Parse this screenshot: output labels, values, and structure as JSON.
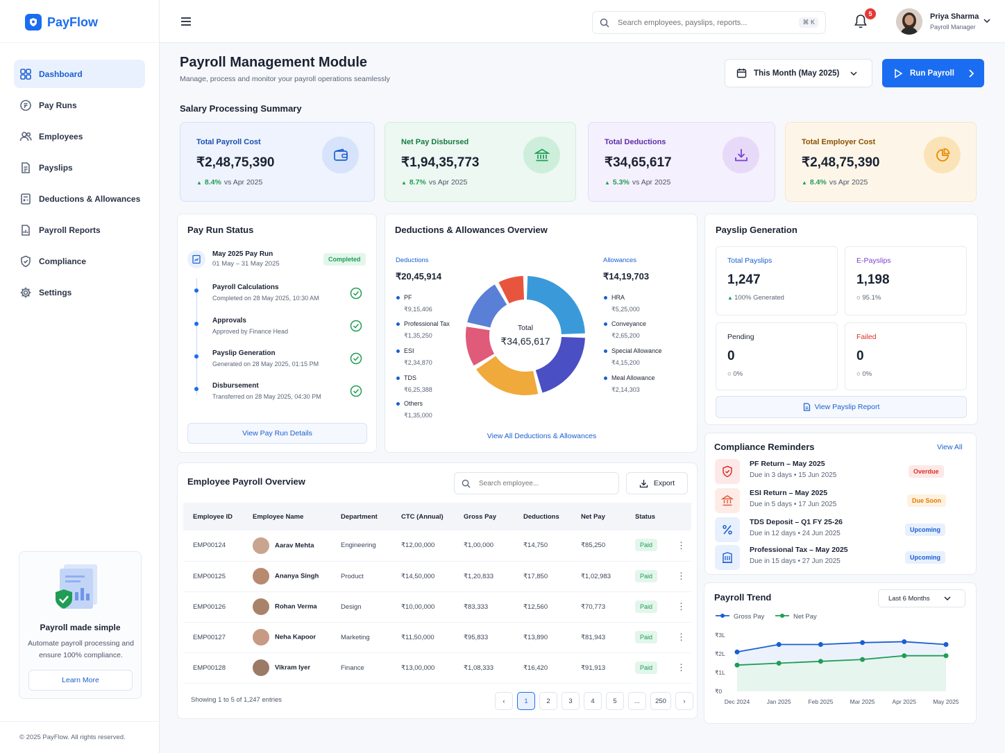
{
  "app": {
    "name": "PayFlow"
  },
  "sidebar": {
    "items": [
      {
        "label": "Dashboard",
        "icon": "grid-icon"
      },
      {
        "label": "Pay Runs",
        "icon": "coin-icon"
      },
      {
        "label": "Employees",
        "icon": "users-icon"
      },
      {
        "label": "Payslips",
        "icon": "document-icon"
      },
      {
        "label": "Deductions & Allowances",
        "icon": "calculator-icon"
      },
      {
        "label": "Payroll Reports",
        "icon": "report-icon"
      },
      {
        "label": "Compliance",
        "icon": "shield-icon"
      },
      {
        "label": "Settings",
        "icon": "gear-icon"
      }
    ],
    "promo": {
      "title": "Payroll made simple",
      "text": "Automate payroll processing and ensure 100% compliance.",
      "button": "Learn More"
    },
    "copyright": "© 2025 PayFlow. All rights reserved."
  },
  "topbar": {
    "search_placeholder": "Search employees, payslips, reports...",
    "shortcut": "⌘ K",
    "notifications": "5",
    "user": {
      "name": "Priya Sharma",
      "role": "Payroll Manager"
    }
  },
  "header": {
    "title": "Payroll Management Module",
    "subtitle": "Manage, process and monitor your payroll operations seamlessly",
    "period": "This Month (May 2025)",
    "run_button": "Run Payroll"
  },
  "summary": {
    "title": "Salary Processing Summary",
    "cards": [
      {
        "label": "Total Payroll Cost",
        "value": "₹2,48,75,390",
        "trend": "8.4%",
        "compare": "vs Apr 2025",
        "icon": "wallet-icon",
        "accent": "#1a5fd0"
      },
      {
        "label": "Net Pay Disbursed",
        "value": "₹1,94,35,773",
        "trend": "8.7%",
        "compare": "vs Apr 2025",
        "icon": "bank-icon",
        "accent": "#1f9d55"
      },
      {
        "label": "Total Deductions",
        "value": "₹34,65,617",
        "trend": "5.3%",
        "compare": "vs Apr 2025",
        "icon": "download-icon",
        "accent": "#7b3fd1"
      },
      {
        "label": "Total Employer Cost",
        "value": "₹2,48,75,390",
        "trend": "8.4%",
        "compare": "vs Apr 2025",
        "icon": "pie-icon",
        "accent": "#b86a00"
      }
    ]
  },
  "pay_run": {
    "title": "Pay Run Status",
    "name": "May 2025 Pay Run",
    "dates": "01 May – 31 May 2025",
    "status": "Completed",
    "steps": [
      {
        "title": "Payroll Calculations",
        "sub": "Completed on 28 May 2025, 10:30 AM"
      },
      {
        "title": "Approvals",
        "sub": "Approved by Finance Head"
      },
      {
        "title": "Payslip Generation",
        "sub": "Generated on 28 May 2025, 01:15 PM"
      },
      {
        "title": "Disbursement",
        "sub": "Transferred on 28 May 2025, 04:30 PM"
      }
    ],
    "button": "View Pay Run Details"
  },
  "deductions_overview": {
    "title": "Deductions & Allowances Overview",
    "deductions_label": "Deductions",
    "deductions_total": "₹20,45,914",
    "allowances_label": "Allowances",
    "allowances_total": "₹14,19,703",
    "deductions": [
      {
        "name": "PF",
        "value": "₹9,15,406"
      },
      {
        "name": "Professional Tax",
        "value": "₹1,35,250"
      },
      {
        "name": "ESI",
        "value": "₹2,34,870"
      },
      {
        "name": "TDS",
        "value": "₹6,25,388"
      },
      {
        "name": "Others",
        "value": "₹1,35,000"
      }
    ],
    "allowances": [
      {
        "name": "HRA",
        "value": "₹5,25,000"
      },
      {
        "name": "Conveyance",
        "value": "₹2,65,200"
      },
      {
        "name": "Special Allowance",
        "value": "₹4,15,200"
      },
      {
        "name": "Meal Allowance",
        "value": "₹2,14,303"
      }
    ],
    "donut_label": "Total",
    "donut_total": "₹34,65,617",
    "link": "View All Deductions & Allowances"
  },
  "donut_segments": [
    {
      "value": 25,
      "color": "#3a9ad9"
    },
    {
      "value": 21,
      "color": "#4a4fc4"
    },
    {
      "value": 20,
      "color": "#f0a93b"
    },
    {
      "value": 12,
      "color": "#e05a7a"
    },
    {
      "value": 14,
      "color": "#5a7fd6"
    },
    {
      "value": 8,
      "color": "#e8553e"
    }
  ],
  "payslips": {
    "title": "Payslip Generation",
    "boxes": [
      {
        "label": "Total Payslips",
        "value": "1,247",
        "sub": "100% Generated",
        "color": "#1a5fd0"
      },
      {
        "label": "E-Payslips",
        "value": "1,198",
        "sub": "95.1%",
        "color": "#7b3fd1"
      },
      {
        "label": "Pending",
        "value": "0",
        "sub": "0%",
        "color": "#1a2233"
      },
      {
        "label": "Failed",
        "value": "0",
        "sub": "0%",
        "color": "#d93025"
      }
    ],
    "button": "View Payslip Report"
  },
  "compliance": {
    "title": "Compliance Reminders",
    "view_all": "View All",
    "items": [
      {
        "title": "PF Return – May 2025",
        "due": "Due in 3 days",
        "date": "15 Jun 2025",
        "status": "Overdue",
        "icon": "shield-icon"
      },
      {
        "title": "ESI Return – May 2025",
        "due": "Due in 5 days",
        "date": "17 Jun 2025",
        "status": "Due Soon",
        "icon": "bank-icon"
      },
      {
        "title": "TDS Deposit – Q1 FY 25-26",
        "due": "Due in 12 days",
        "date": "24 Jun 2025",
        "status": "Upcoming",
        "icon": "percent-icon"
      },
      {
        "title": "Professional Tax – May 2025",
        "due": "Due in 15 days",
        "date": "27 Jun 2025",
        "status": "Upcoming",
        "icon": "building-icon"
      }
    ]
  },
  "employees": {
    "title": "Employee Payroll Overview",
    "search_placeholder": "Search employee...",
    "export": "Export",
    "columns": [
      "Employee ID",
      "Employee Name",
      "Department",
      "CTC (Annual)",
      "Gross Pay",
      "Deductions",
      "Net Pay",
      "Status"
    ],
    "rows": [
      [
        "EMP00124",
        "Aarav Mehta",
        "Engineering",
        "₹12,00,000",
        "₹1,00,000",
        "₹14,750",
        "₹85,250",
        "Paid"
      ],
      [
        "EMP00125",
        "Ananya Singh",
        "Product",
        "₹14,50,000",
        "₹1,20,833",
        "₹17,850",
        "₹1,02,983",
        "Paid"
      ],
      [
        "EMP00126",
        "Rohan Verma",
        "Design",
        "₹10,00,000",
        "₹83,333",
        "₹12,560",
        "₹70,773",
        "Paid"
      ],
      [
        "EMP00127",
        "Neha Kapoor",
        "Marketing",
        "₹11,50,000",
        "₹95,833",
        "₹13,890",
        "₹81,943",
        "Paid"
      ],
      [
        "EMP00128",
        "Vikram Iyer",
        "Finance",
        "₹13,00,000",
        "₹1,08,333",
        "₹16,420",
        "₹91,913",
        "Paid"
      ]
    ],
    "showing": "Showing 1 to 5 of 1,247 entries",
    "pages": [
      "‹",
      "1",
      "2",
      "3",
      "4",
      "5",
      "...",
      "250",
      "›"
    ]
  },
  "chart_data": {
    "type": "line",
    "title": "Payroll Trend",
    "range_label": "Last 6 Months",
    "categories": [
      "Dec 2024",
      "Jan 2025",
      "Feb 2025",
      "Mar 2025",
      "Apr 2025",
      "May 2025"
    ],
    "y_ticks": [
      "₹0",
      "₹1L",
      "₹2L",
      "₹3L"
    ],
    "ylim": [
      0,
      3
    ],
    "series": [
      {
        "name": "Gross Pay",
        "color": "#1a5fd0",
        "values": [
          2.1,
          2.5,
          2.5,
          2.6,
          2.65,
          2.5
        ]
      },
      {
        "name": "Net Pay",
        "color": "#1f9d55",
        "values": [
          1.4,
          1.5,
          1.6,
          1.7,
          1.9,
          1.9
        ]
      }
    ]
  }
}
